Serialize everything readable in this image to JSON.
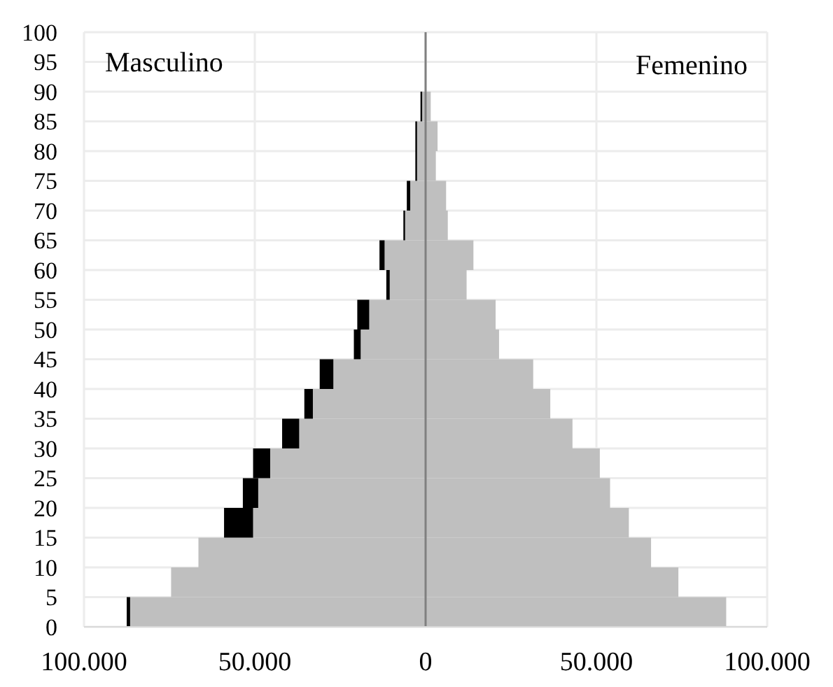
{
  "chart_data": {
    "type": "bar",
    "orientation": "horizontal",
    "stacked": true,
    "x": [
      2.5,
      7.5,
      12.5,
      17.5,
      22.5,
      27.5,
      32.5,
      37.5,
      42.5,
      47.5,
      52.5,
      57.5,
      62.5,
      67.5,
      72.5,
      77.5,
      82.5,
      87.5,
      92.5,
      97.5
    ],
    "series": [
      {
        "color": "#bfbfbf",
        "values": [
          -86500,
          -74500,
          -66500,
          -50500,
          -49000,
          -45500,
          -37000,
          -33000,
          -27000,
          -19000,
          -16500,
          -10500,
          -12000,
          -6000,
          -4500,
          -2500,
          -2500,
          -1000,
          null,
          null
        ]
      },
      {
        "color": "#000000",
        "values": [
          -1000,
          0,
          0,
          -8500,
          -4500,
          -5000,
          -5000,
          -2500,
          -4000,
          -2000,
          -3500,
          -1000,
          -1500,
          -500,
          -1000,
          -500,
          -500,
          -500,
          0,
          0
        ]
      },
      {
        "color": "#bfbfbf",
        "values": [
          88000,
          74000,
          66000,
          59500,
          54000,
          51000,
          43000,
          36500,
          31500,
          21500,
          20500,
          12000,
          14000,
          6500,
          6000,
          3000,
          3500,
          1500,
          null,
          null
        ]
      }
    ],
    "xlim": [
      -100000,
      100000
    ],
    "xticks": [
      {
        "value": -100000,
        "label": "100.000"
      },
      {
        "value": -50000,
        "label": "50.000"
      },
      0,
      {
        "value": 50000,
        "label": "50.000"
      },
      {
        "value": 100000,
        "label": "100.000"
      }
    ],
    "ylim": [
      0,
      100
    ],
    "yticks": [
      0,
      5,
      10,
      15,
      20,
      25,
      30,
      35,
      40,
      45,
      50,
      55,
      60,
      65,
      70,
      75,
      80,
      85,
      90,
      95,
      100
    ],
    "grid": true,
    "annotations": [
      "Masculino",
      "Femenino"
    ]
  }
}
